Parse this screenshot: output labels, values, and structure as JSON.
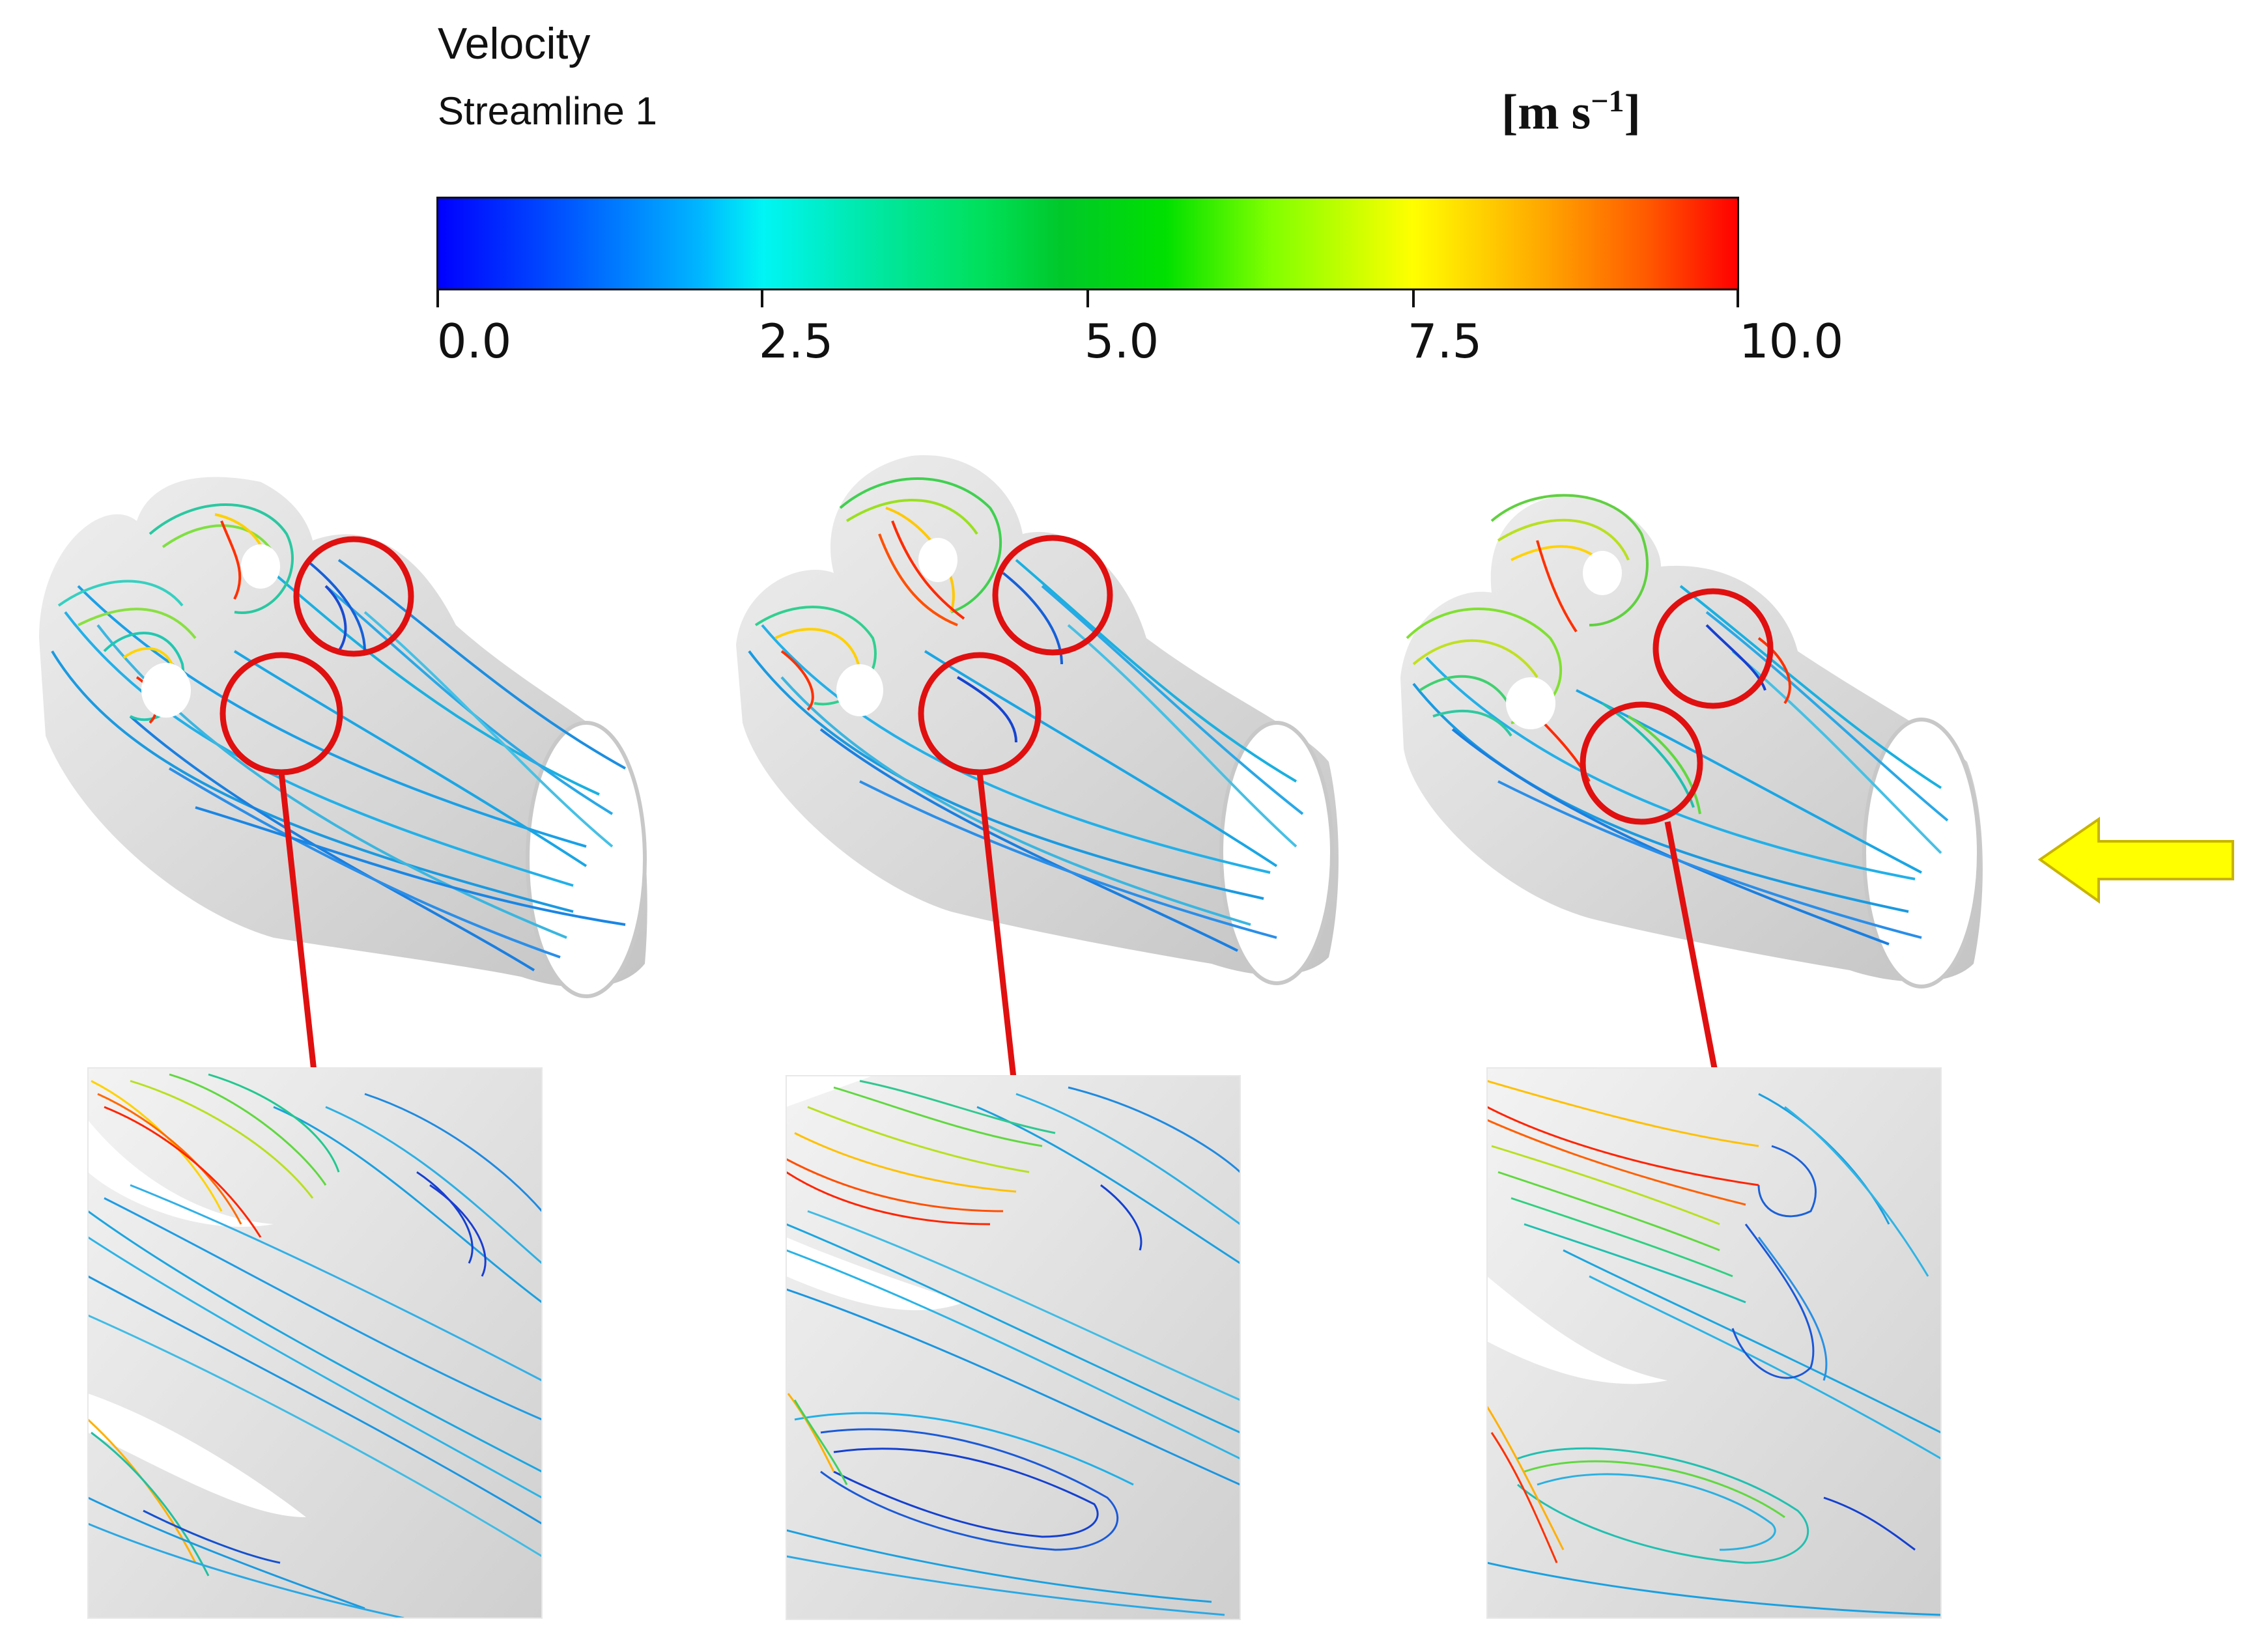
{
  "legend": {
    "title": "Velocity",
    "subtitle": "Streamline 1",
    "unit_main": "[m s",
    "unit_sup": "−1",
    "unit_end": "]",
    "ticks": [
      "0.0",
      "2.5",
      "5.0",
      "7.5",
      "10.0"
    ]
  },
  "colors": {
    "highlight_circle": "#e01010",
    "leader_line": "#e01010",
    "arrow_fill": "#ffff00",
    "arrow_stroke": "#c8b400",
    "geometry_gray": "#d9d9d9"
  },
  "panels": [
    {
      "id": "case-1",
      "has_zoom_inset": true
    },
    {
      "id": "case-2",
      "has_zoom_inset": true
    },
    {
      "id": "case-3",
      "has_zoom_inset": true
    }
  ],
  "flow_direction_icon": "left-arrow-icon"
}
